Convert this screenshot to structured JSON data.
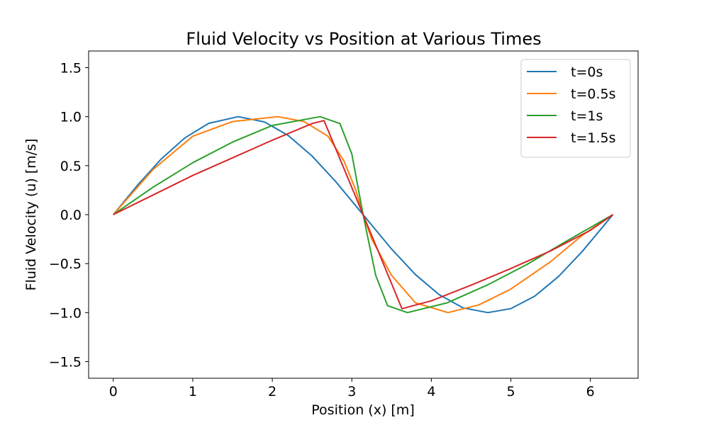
{
  "chart_data": {
    "type": "line",
    "title": "Fluid Velocity vs Position at Various Times",
    "xlabel": "Position (x) [m]",
    "ylabel": "Fluid Velocity (u) [m/s]",
    "xlim": [
      -0.31,
      6.6
    ],
    "ylim": [
      -1.67,
      1.67
    ],
    "xticks": [
      0,
      1,
      2,
      3,
      4,
      5,
      6
    ],
    "xtick_labels": [
      "0",
      "1",
      "2",
      "3",
      "4",
      "5",
      "6"
    ],
    "yticks": [
      -1.5,
      -1.0,
      -0.5,
      0.0,
      0.5,
      1.0,
      1.5
    ],
    "ytick_labels": [
      "−1.5",
      "−1.0",
      "−0.5",
      "0.0",
      "0.5",
      "1.0",
      "1.5"
    ],
    "grid": false,
    "legend": "top-right",
    "series": [
      {
        "name": "t=0s",
        "color": "#1f77b4",
        "x": [
          0,
          0.3,
          0.6,
          0.9,
          1.2,
          1.571,
          1.9,
          2.2,
          2.5,
          2.8,
          3.1416,
          3.5,
          3.8,
          4.1,
          4.4,
          4.712,
          5.0,
          5.3,
          5.6,
          5.9,
          6.2832
        ],
        "y": [
          0,
          0.296,
          0.565,
          0.783,
          0.932,
          1.0,
          0.946,
          0.808,
          0.598,
          0.335,
          0,
          -0.351,
          -0.612,
          -0.818,
          -0.952,
          -1.0,
          -0.959,
          -0.832,
          -0.631,
          -0.374,
          0
        ]
      },
      {
        "name": "t=0.5s",
        "color": "#ff7f0e",
        "x": [
          0,
          0.5,
          1.0,
          1.5,
          2.07,
          2.4,
          2.7,
          2.9,
          3.05,
          3.1416,
          3.25,
          3.5,
          3.8,
          4.21,
          4.6,
          5.0,
          5.5,
          5.9,
          6.2832
        ],
        "y": [
          0,
          0.46,
          0.8,
          0.95,
          1.0,
          0.95,
          0.8,
          0.55,
          0.25,
          0,
          -0.25,
          -0.62,
          -0.9,
          -1.0,
          -0.92,
          -0.76,
          -0.48,
          -0.21,
          0
        ]
      },
      {
        "name": "t=1s",
        "color": "#2ca02c",
        "x": [
          0,
          0.5,
          1.0,
          1.5,
          2.0,
          2.6,
          2.85,
          3.0,
          3.1416,
          3.3,
          3.45,
          3.7,
          4.2,
          4.7,
          5.2,
          5.7,
          6.2832
        ],
        "y": [
          0,
          0.28,
          0.53,
          0.74,
          0.91,
          1.0,
          0.93,
          0.62,
          0,
          -0.62,
          -0.93,
          -1.0,
          -0.9,
          -0.72,
          -0.51,
          -0.27,
          0
        ]
      },
      {
        "name": "t=1.5s",
        "color": "#d62728",
        "x": [
          0,
          0.5,
          1.0,
          1.5,
          2.0,
          2.5,
          2.65,
          3.1416,
          3.63,
          4.0,
          4.5,
          5.0,
          5.5,
          6.0,
          6.2832
        ],
        "y": [
          0,
          0.2,
          0.4,
          0.58,
          0.76,
          0.93,
          0.96,
          0,
          -0.96,
          -0.88,
          -0.72,
          -0.55,
          -0.37,
          -0.16,
          0
        ]
      }
    ]
  }
}
